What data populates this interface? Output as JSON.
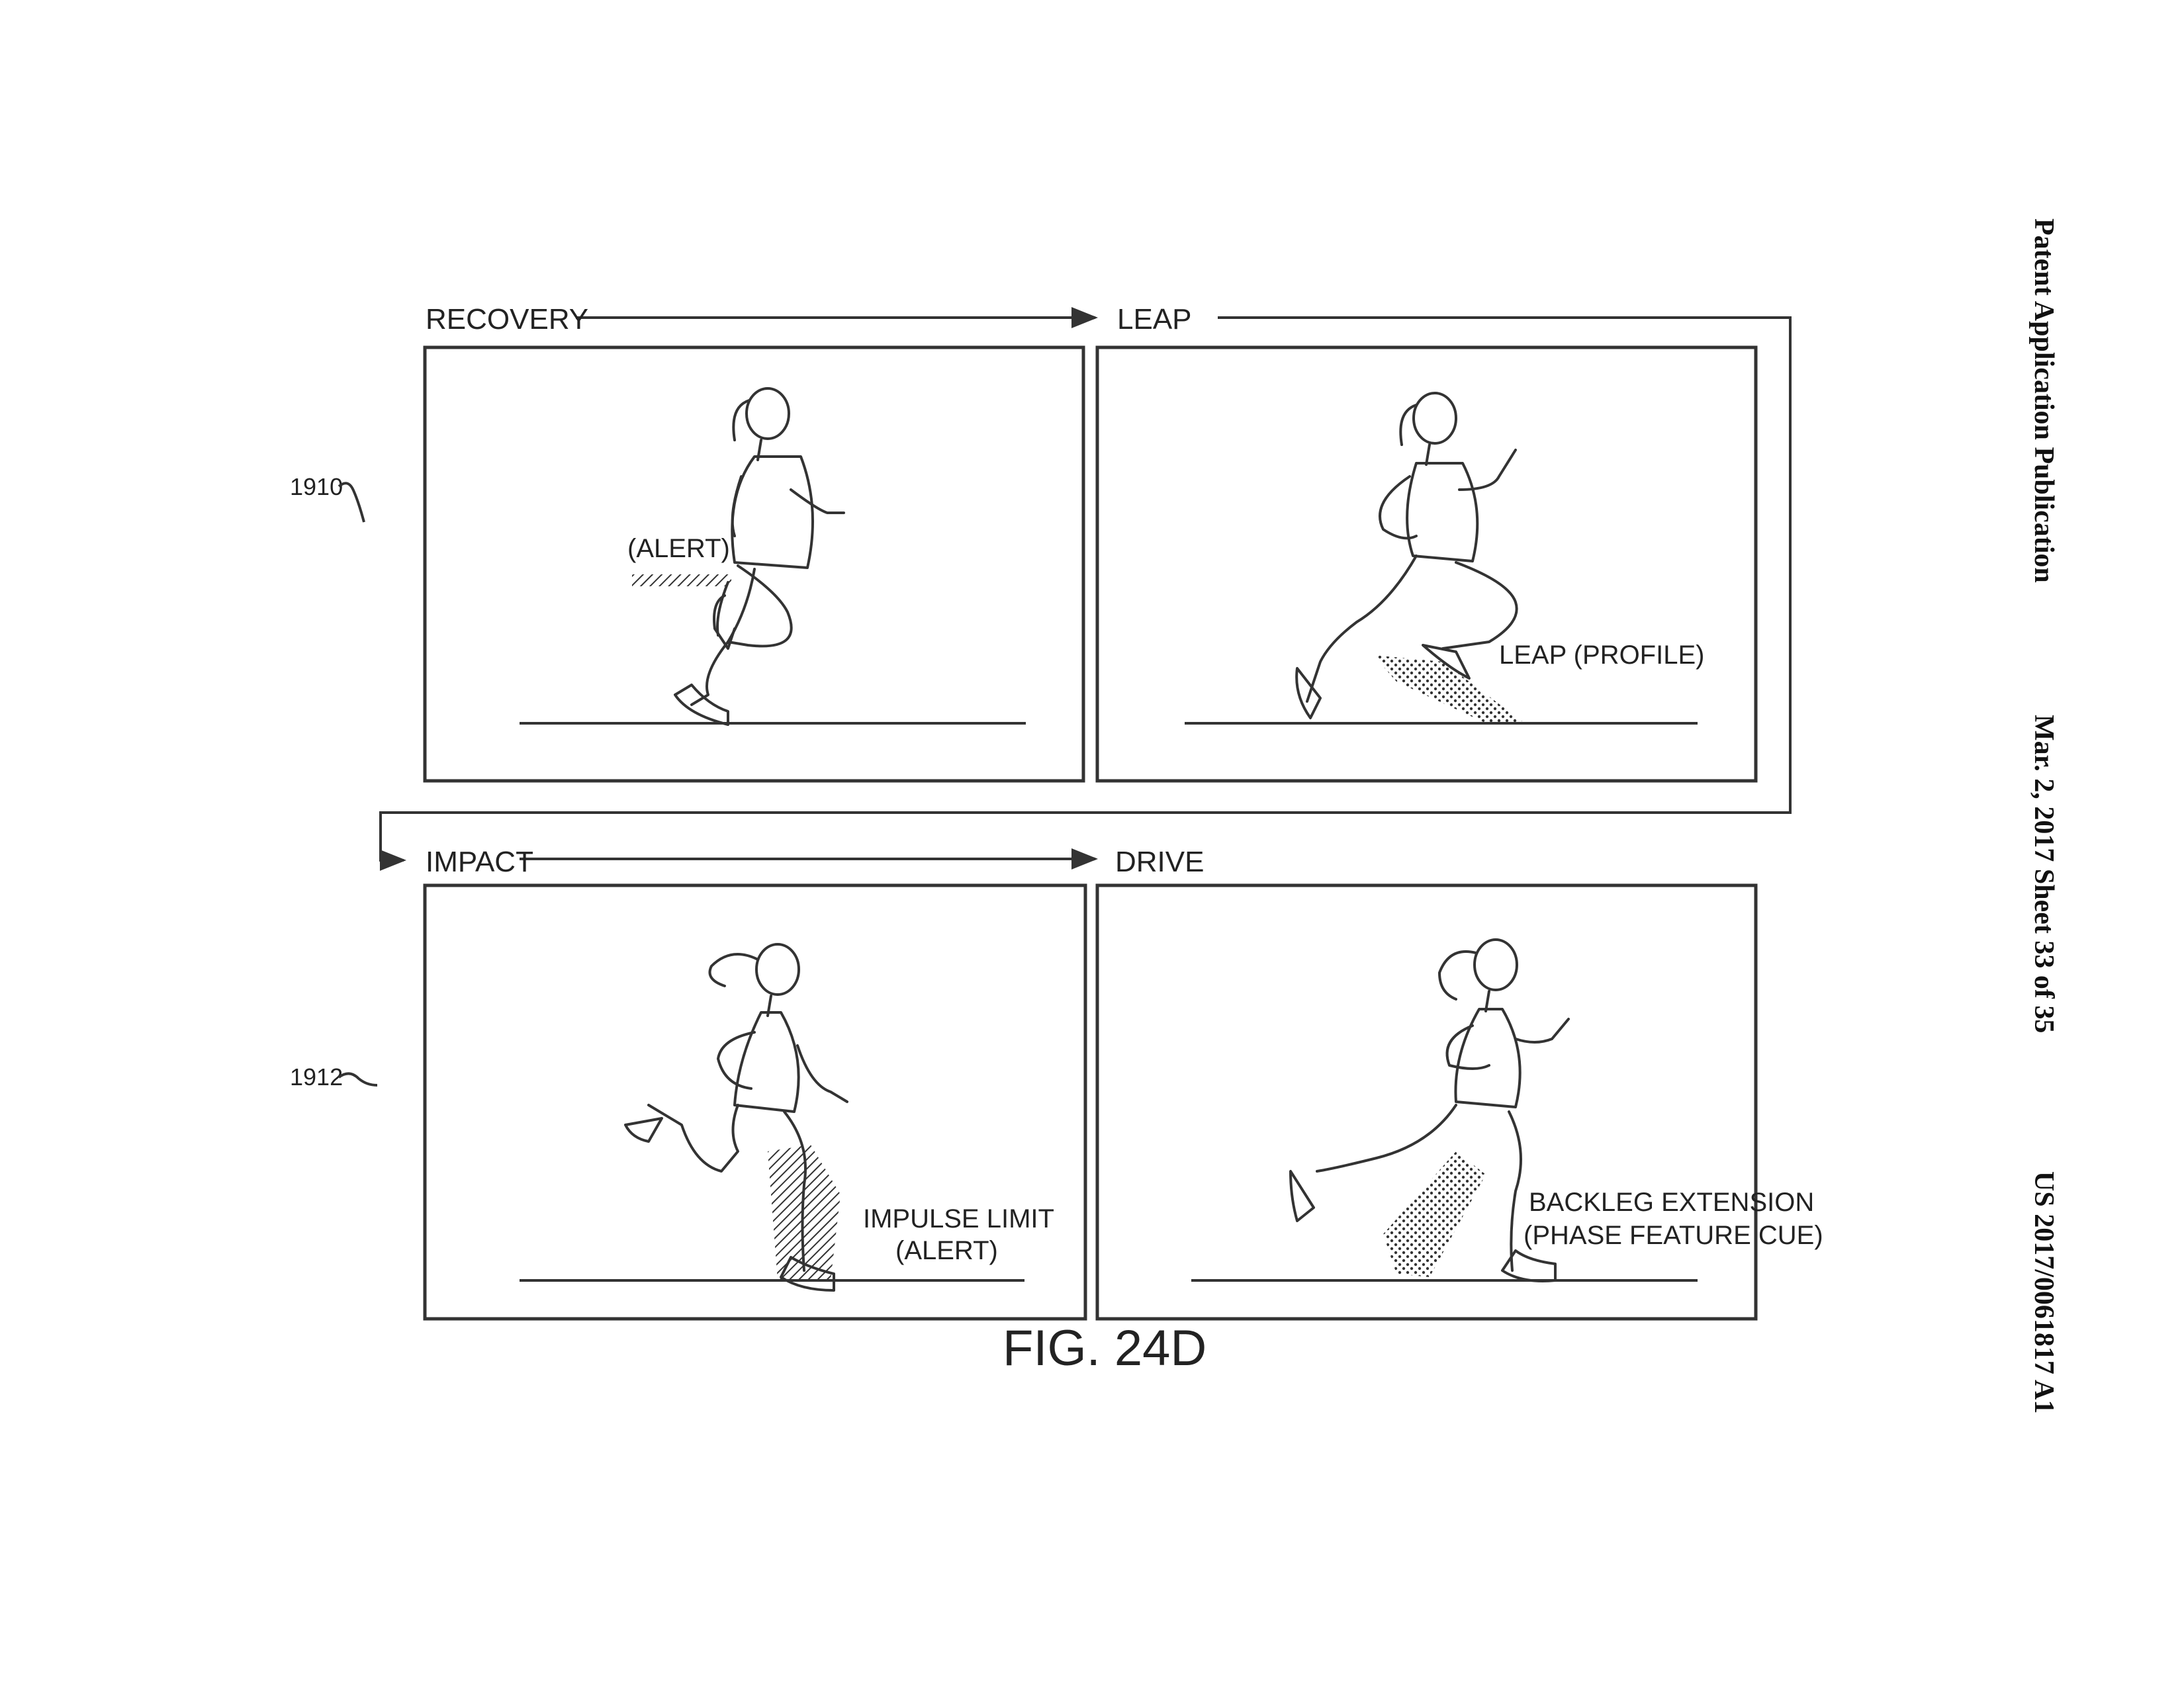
{
  "header": {
    "publication": "Patent Application Publication",
    "date_sheet": "Mar. 2, 2017  Sheet 33 of 35",
    "number": "US 2017/0061817 A1"
  },
  "figure": {
    "caption": "FIG. 24D",
    "refs": {
      "top_row": "1910",
      "bottom_row": "1912"
    },
    "panels": {
      "recovery": {
        "phase": "RECOVERY",
        "annotation": "(ALERT)"
      },
      "leap": {
        "phase": "LEAP",
        "annotation": "LEAP (PROFILE)"
      },
      "impact": {
        "phase": "IMPACT",
        "annotation_line1": "IMPULSE LIMIT",
        "annotation_line2": "(ALERT)"
      },
      "drive": {
        "phase": "DRIVE",
        "annotation_line1": "BACKLEG EXTENSION",
        "annotation_line2": "(PHASE FEATURE CUE)"
      }
    }
  }
}
